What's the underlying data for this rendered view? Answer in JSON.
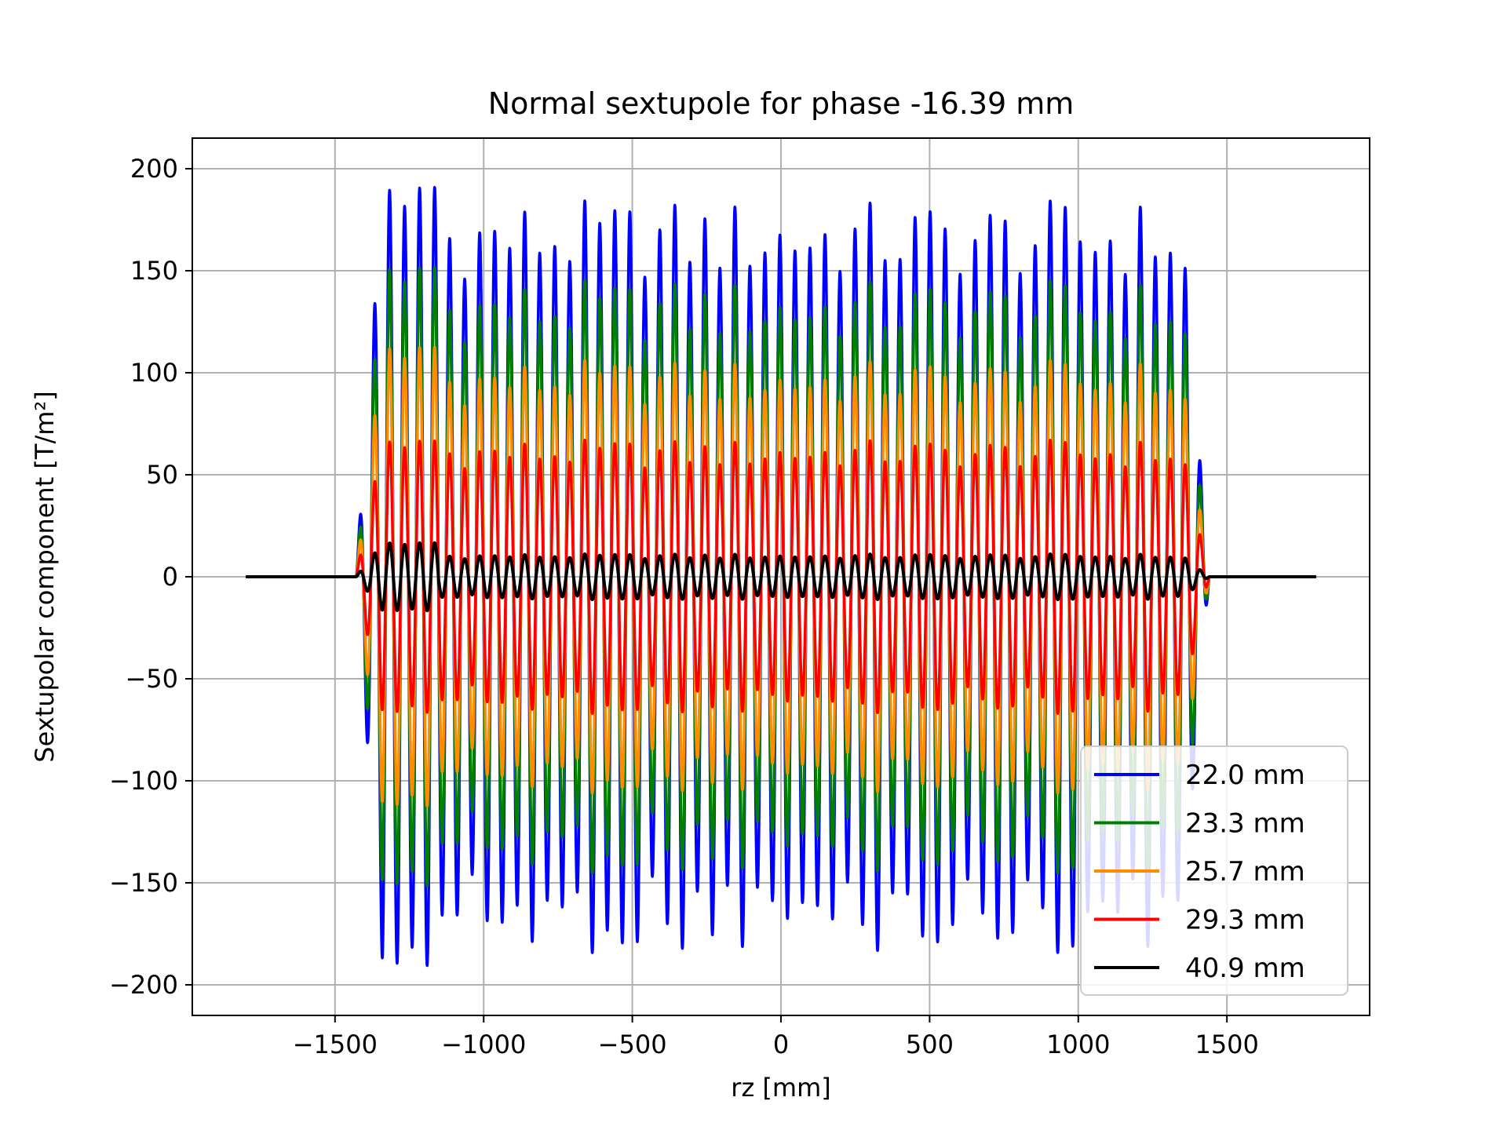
{
  "chart_data": {
    "type": "line",
    "title": "Normal sextupole for phase -16.39 mm",
    "xlabel": "rz [mm]",
    "ylabel": "Sextupolar component [T/m²]",
    "xlim": [
      -1980,
      1980
    ],
    "ylim": [
      -215,
      215
    ],
    "xticks": [
      -1500,
      -1000,
      -500,
      0,
      500,
      1000,
      1500
    ],
    "yticks": [
      200,
      150,
      100,
      50,
      0,
      -50,
      -100,
      -150,
      -200
    ],
    "xtick_labels": [
      "−1500",
      "−1000",
      "−500",
      "0",
      "500",
      "1000",
      "1500"
    ],
    "ytick_labels": [
      "200",
      "150",
      "100",
      "50",
      "0",
      "−50",
      "−100",
      "−150",
      "−200"
    ],
    "grid": true,
    "legend_position": "lower-right",
    "x_range": [
      -1800,
      1800
    ],
    "oscillation_region": [
      -1430,
      1440
    ],
    "series": [
      {
        "name": "22.0 mm",
        "color": "#0000ff",
        "amplitude": 165,
        "edge_peak": 195
      },
      {
        "name": "23.3 mm",
        "color": "#008000",
        "amplitude": 130,
        "edge_peak": 155
      },
      {
        "name": "25.7 mm",
        "color": "#ff8c00",
        "amplitude": 95,
        "edge_peak": 115
      },
      {
        "name": "29.3 mm",
        "color": "#ff0000",
        "amplitude": 60,
        "edge_peak": 68
      },
      {
        "name": "40.9 mm",
        "color": "#000000",
        "amplitude": 10,
        "edge_peak": 17
      }
    ]
  }
}
